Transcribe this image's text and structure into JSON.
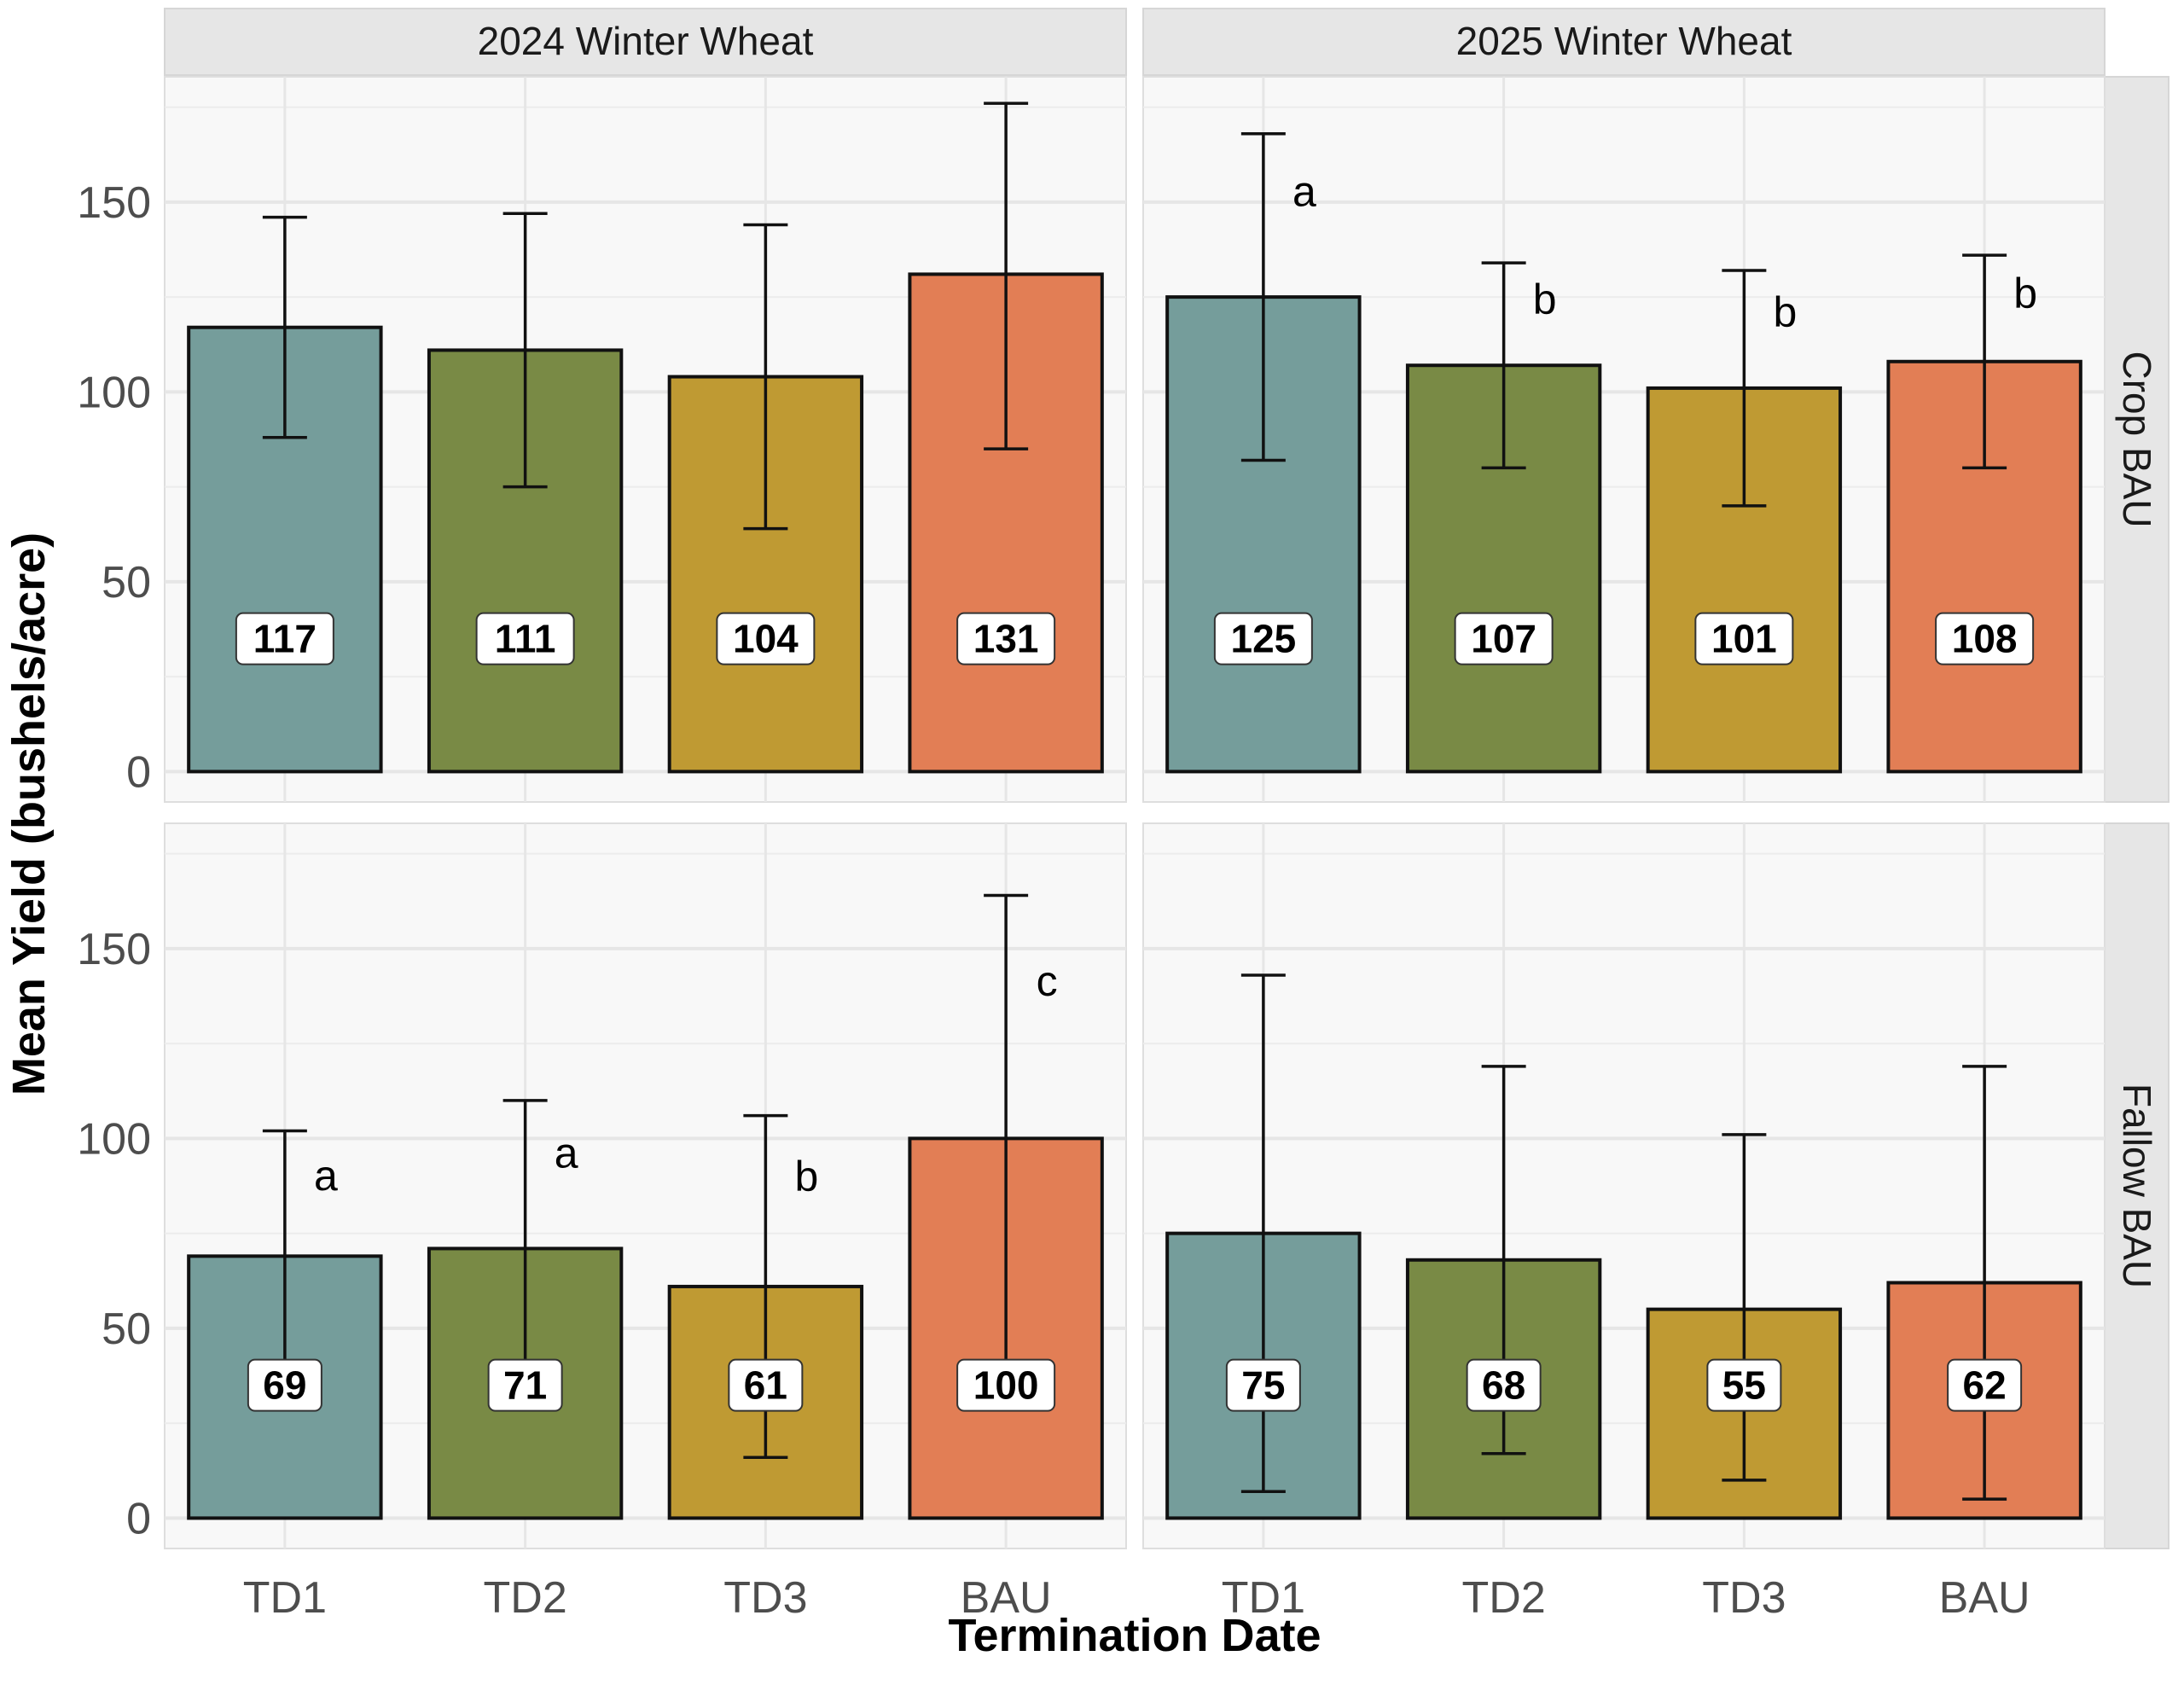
{
  "chart_data": {
    "type": "bar",
    "xlabel": "Termination Date",
    "ylabel": "Mean Yield (bushels/acre)",
    "ylim": [
      -8,
      183
    ],
    "yticks": [
      0,
      50,
      100,
      150
    ],
    "categories": [
      "TD1",
      "TD2",
      "TD3",
      "BAU"
    ],
    "colors": {
      "TD1": "#759d9b",
      "TD2": "#798a45",
      "TD3": "#bf9a33",
      "BAU": "#e27e55"
    },
    "grid": true,
    "legend": "none",
    "columns": [
      "2024 Winter Wheat",
      "2025 Winter Wheat"
    ],
    "rows": [
      "Crop BAU",
      "Fallow BAU"
    ],
    "panels": [
      {
        "column": "2024 Winter Wheat",
        "row": "Crop BAU",
        "values": [
          117,
          111,
          104,
          131
        ],
        "error_low": [
          88,
          75,
          64,
          85
        ],
        "error_high": [
          146,
          147,
          144,
          176
        ],
        "letters": [
          "",
          "",
          "",
          ""
        ]
      },
      {
        "column": "2025 Winter Wheat",
        "row": "Crop BAU",
        "values": [
          125,
          107,
          101,
          108
        ],
        "error_low": [
          82,
          80,
          70,
          80
        ],
        "error_high": [
          168,
          134,
          132,
          136
        ],
        "letters": [
          "a",
          "b",
          "b",
          "b"
        ]
      },
      {
        "column": "2024 Winter Wheat",
        "row": "Fallow BAU",
        "values": [
          69,
          71,
          61,
          100
        ],
        "error_low": [
          36,
          32,
          16,
          36
        ],
        "error_high": [
          102,
          110,
          106,
          164
        ],
        "letters": [
          "a",
          "a",
          "b",
          "c"
        ]
      },
      {
        "column": "2025 Winter Wheat",
        "row": "Fallow BAU",
        "values": [
          75,
          68,
          55,
          62
        ],
        "error_low": [
          7,
          17,
          10,
          5
        ],
        "error_high": [
          143,
          119,
          101,
          119
        ],
        "letters": [
          "",
          "",
          "",
          ""
        ]
      }
    ]
  }
}
